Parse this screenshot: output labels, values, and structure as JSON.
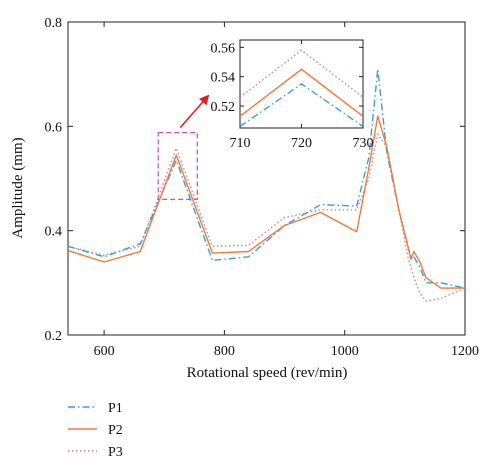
{
  "chart_data": [
    {
      "id": "main",
      "type": "line",
      "xlabel": "Rotational speed (rev/min)",
      "ylabel": "Amplitude (mm)",
      "xlim": [
        540,
        1200
      ],
      "ylim": [
        0.2,
        0.8
      ],
      "xticks": [
        600,
        800,
        1000,
        1200
      ],
      "yticks": [
        0.2,
        0.4,
        0.6,
        0.8
      ],
      "xtick_labels": [
        "600",
        "800",
        "1000",
        "1200"
      ],
      "ytick_labels": [
        "0.2",
        "0.4",
        "0.6",
        "0.8"
      ],
      "grid": false,
      "legend_position": "below-left",
      "series": [
        {
          "name": "P1",
          "color": "#3a9fd0",
          "style": "dash-dot",
          "x": [
            540,
            600,
            660,
            720,
            780,
            840,
            900,
            960,
            1020,
            1040,
            1055,
            1070,
            1090,
            1105,
            1110,
            1115,
            1125,
            1135,
            1160,
            1200
          ],
          "y": [
            0.37,
            0.35,
            0.375,
            0.535,
            0.343,
            0.35,
            0.41,
            0.45,
            0.447,
            0.54,
            0.71,
            0.55,
            0.44,
            0.37,
            0.35,
            0.35,
            0.33,
            0.3,
            0.3,
            0.29
          ]
        },
        {
          "name": "P2",
          "color": "#f07a3e",
          "style": "solid",
          "x": [
            540,
            600,
            660,
            720,
            780,
            840,
            900,
            960,
            1020,
            1040,
            1055,
            1070,
            1090,
            1105,
            1110,
            1115,
            1125,
            1135,
            1160,
            1200
          ],
          "y": [
            0.362,
            0.34,
            0.36,
            0.545,
            0.357,
            0.36,
            0.41,
            0.435,
            0.398,
            0.52,
            0.62,
            0.56,
            0.44,
            0.37,
            0.345,
            0.36,
            0.34,
            0.31,
            0.29,
            0.29
          ]
        },
        {
          "name": "P3",
          "color": "#b58bb5",
          "style": "dotted",
          "x": [
            540,
            600,
            660,
            720,
            780,
            840,
            900,
            960,
            1020,
            1040,
            1055,
            1070,
            1090,
            1105,
            1110,
            1115,
            1125,
            1135,
            1160,
            1200
          ],
          "y": [
            0.37,
            0.353,
            0.37,
            0.558,
            0.37,
            0.372,
            0.425,
            0.44,
            0.44,
            0.5,
            0.585,
            0.56,
            0.44,
            0.35,
            0.33,
            0.31,
            0.28,
            0.265,
            0.27,
            0.29
          ]
        }
      ],
      "highlight_box": {
        "x": [
          690,
          755
        ],
        "y": [
          0.46,
          0.588
        ],
        "color": "#c04fc0"
      },
      "arrow_color": "#e02020"
    },
    {
      "id": "inset",
      "type": "line",
      "xlim": [
        710,
        730
      ],
      "ylim": [
        0.505,
        0.565
      ],
      "xticks": [
        710,
        720,
        730
      ],
      "yticks": [
        0.52,
        0.54,
        0.56
      ],
      "xtick_labels": [
        "710",
        "720",
        "730"
      ],
      "ytick_labels": [
        "0.52",
        "0.54",
        "0.56"
      ],
      "series": [
        {
          "name": "P1",
          "x": [
            710,
            720,
            730
          ],
          "y": [
            0.506,
            0.535,
            0.506
          ]
        },
        {
          "name": "P2",
          "x": [
            710,
            720,
            730
          ],
          "y": [
            0.513,
            0.545,
            0.513
          ]
        },
        {
          "name": "P3",
          "x": [
            710,
            720,
            730
          ],
          "y": [
            0.526,
            0.558,
            0.526
          ]
        }
      ]
    }
  ],
  "legend": [
    {
      "label": "P1",
      "color": "#3a9fd0",
      "style": "dash-dot"
    },
    {
      "label": "P2",
      "color": "#f07a3e",
      "style": "solid"
    },
    {
      "label": "P3",
      "color": "#b58bb5",
      "style": "dotted"
    }
  ]
}
